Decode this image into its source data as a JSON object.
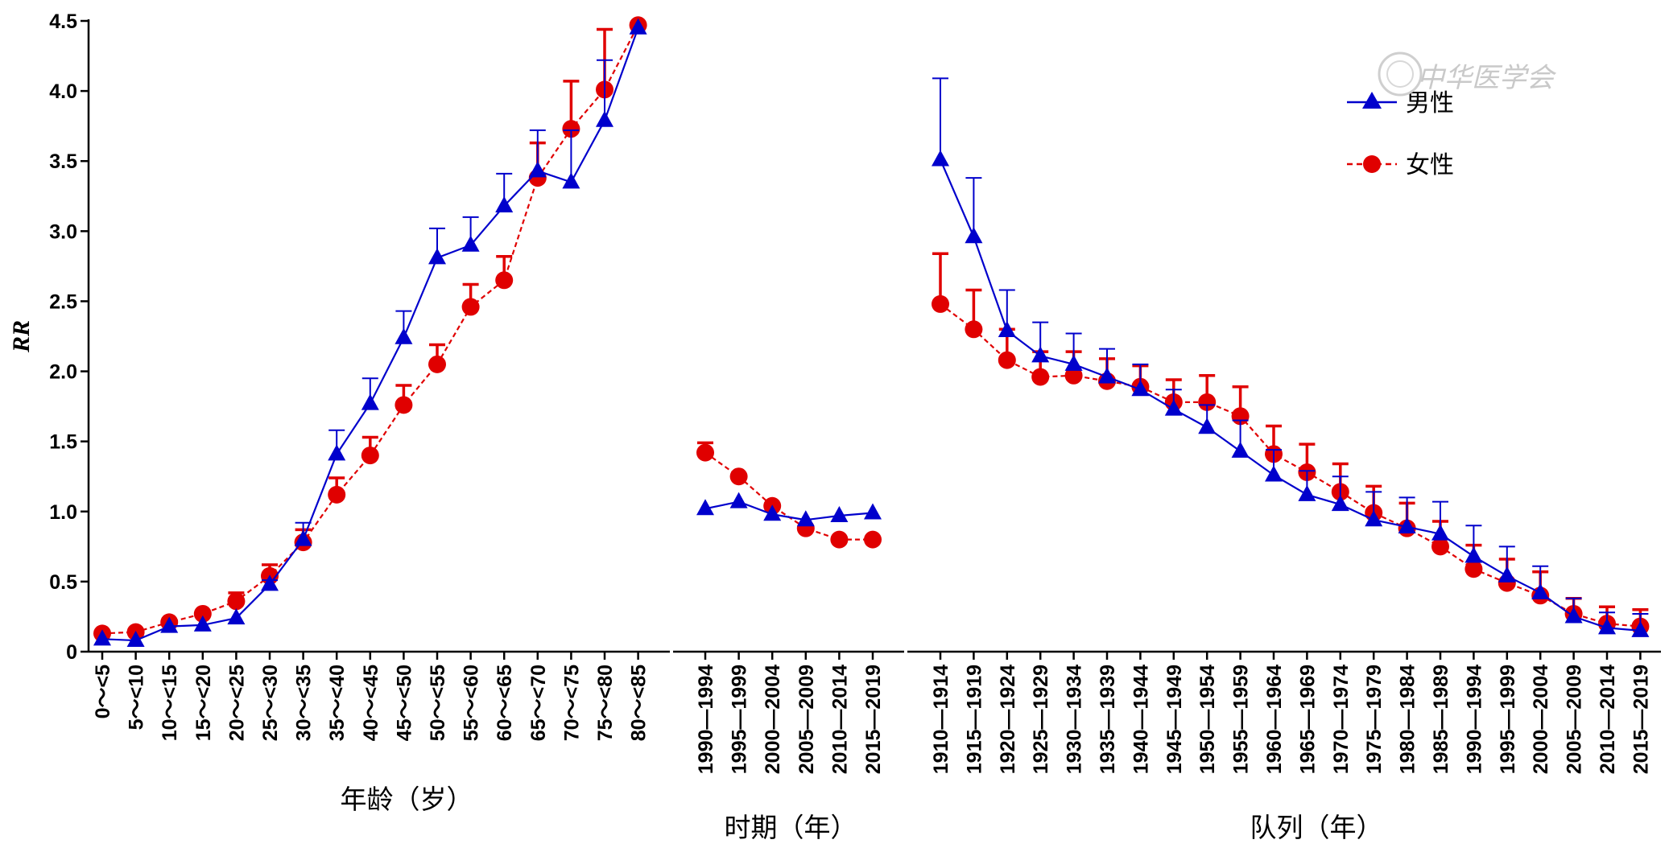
{
  "chart_data": {
    "type": "line",
    "ylabel": "RR",
    "ylim": [
      0,
      4.5
    ],
    "yticks": [
      "0",
      "0.5",
      "1.0",
      "1.5",
      "2.0",
      "2.5",
      "3.0",
      "3.5",
      "4.0",
      "4.5"
    ],
    "legend": {
      "position": "top-right",
      "entries": [
        "男性",
        "女性"
      ]
    },
    "colors": {
      "male": "#0000cc",
      "female": "#e00000"
    },
    "watermark": "中华医学会",
    "panels": [
      {
        "name": "age",
        "xlabel": "年龄（岁）",
        "categories": [
          "0～<5",
          "5～<10",
          "10～<15",
          "15～<20",
          "20～<25",
          "25～<30",
          "30～<35",
          "35～<40",
          "40～<45",
          "45～<50",
          "50～<55",
          "55～<60",
          "60～<65",
          "65～<70",
          "70～<75",
          "75～<80",
          "80～<85"
        ],
        "series": [
          {
            "name": "男性",
            "values": [
              0.09,
              0.08,
              0.18,
              0.19,
              0.24,
              0.48,
              0.8,
              1.41,
              1.77,
              2.24,
              2.81,
              2.9,
              3.18,
              3.43,
              3.35,
              3.79,
              4.45
            ],
            "errors": [
              0,
              0,
              0,
              0,
              0,
              0.03,
              0.12,
              0.17,
              0.18,
              0.19,
              0.21,
              0.2,
              0.23,
              0.29,
              0.37,
              0.43,
              0
            ]
          },
          {
            "name": "女性",
            "values": [
              0.13,
              0.14,
              0.21,
              0.27,
              0.36,
              0.54,
              0.78,
              1.12,
              1.4,
              1.76,
              2.05,
              2.46,
              2.65,
              3.38,
              3.73,
              4.01,
              4.47
            ],
            "errors": [
              0,
              0,
              0,
              0,
              0.06,
              0.08,
              0.09,
              0.12,
              0.13,
              0.14,
              0.14,
              0.16,
              0.17,
              0.25,
              0.34,
              0.43,
              0
            ]
          }
        ]
      },
      {
        "name": "period",
        "xlabel": "时期（年）",
        "categories": [
          "1990—1994",
          "1995—1999",
          "2000—2004",
          "2005—2009",
          "2010—2014",
          "2015—2019"
        ],
        "series": [
          {
            "name": "男性",
            "values": [
              1.02,
              1.07,
              0.98,
              0.94,
              0.97,
              0.99
            ],
            "errors": [
              0,
              0,
              0,
              0,
              0,
              0
            ]
          },
          {
            "name": "女性",
            "values": [
              1.42,
              1.25,
              1.04,
              0.88,
              0.8,
              0.8
            ],
            "errors": [
              0.07,
              0,
              0,
              0,
              0,
              0
            ]
          }
        ]
      },
      {
        "name": "cohort",
        "xlabel": "队列（年）",
        "categories": [
          "1910—1914",
          "1915—1919",
          "1920—1924",
          "1925—1929",
          "1930—1934",
          "1935—1939",
          "1940—1944",
          "1945—1949",
          "1950—1954",
          "1955—1959",
          "1960—1964",
          "1965—1969",
          "1970—1974",
          "1975—1979",
          "1980—1984",
          "1985—1989",
          "1990—1994",
          "1995—1999",
          "2000—2004",
          "2005—2009",
          "2010—2014",
          "2015—2019"
        ],
        "series": [
          {
            "name": "男性",
            "values": [
              3.51,
              2.96,
              2.29,
              2.11,
              2.05,
              1.96,
              1.87,
              1.73,
              1.6,
              1.43,
              1.26,
              1.12,
              1.05,
              0.94,
              0.89,
              0.84,
              0.68,
              0.54,
              0.42,
              0.25,
              0.17,
              0.15
            ],
            "errors": [
              0.58,
              0.42,
              0.29,
              0.24,
              0.22,
              0.2,
              0.18,
              0.14,
              0.16,
              0.22,
              0.18,
              0.17,
              0.2,
              0.2,
              0.21,
              0.23,
              0.22,
              0.21,
              0.19,
              0.13,
              0.11,
              0.12
            ]
          },
          {
            "name": "女性",
            "values": [
              2.48,
              2.3,
              2.08,
              1.96,
              1.97,
              1.93,
              1.89,
              1.78,
              1.78,
              1.68,
              1.41,
              1.28,
              1.14,
              0.99,
              0.88,
              0.75,
              0.59,
              0.49,
              0.4,
              0.27,
              0.2,
              0.18
            ],
            "errors": [
              0.36,
              0.28,
              0.22,
              0.18,
              0.17,
              0.16,
              0.15,
              0.16,
              0.19,
              0.21,
              0.2,
              0.2,
              0.2,
              0.19,
              0.18,
              0.18,
              0.17,
              0.17,
              0.17,
              0.11,
              0.12,
              0.12
            ]
          }
        ]
      }
    ]
  }
}
